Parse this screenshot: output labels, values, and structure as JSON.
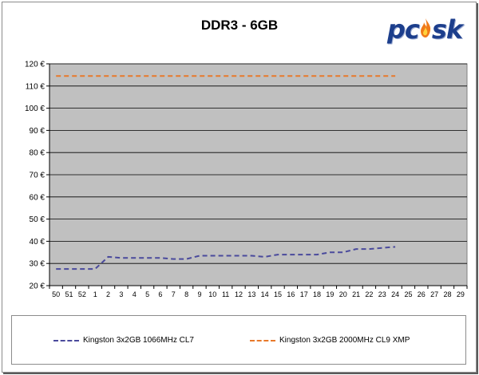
{
  "brand": {
    "logo_text": "pcask",
    "logo_color": "#1c3e8c",
    "flame_color": "#f07a18"
  },
  "chart_data": {
    "type": "line",
    "title": "DDR3 - 6GB",
    "xlabel": "",
    "ylabel": "",
    "categories": [
      "50",
      "51",
      "52",
      "1",
      "2",
      "3",
      "4",
      "5",
      "6",
      "7",
      "8",
      "9",
      "10",
      "11",
      "12",
      "13",
      "14",
      "15",
      "16",
      "17",
      "18",
      "19",
      "20",
      "21",
      "22",
      "23",
      "24",
      "25",
      "26",
      "27",
      "28",
      "29"
    ],
    "ylim": [
      20,
      120
    ],
    "yticks": [
      20,
      30,
      40,
      50,
      60,
      70,
      80,
      90,
      100,
      110,
      120
    ],
    "y_unit_suffix": " €",
    "grid": "horizontal",
    "plot_background": "#c0c0c0",
    "legend_position": "bottom",
    "series": [
      {
        "name": "Kingston 3x2GB 1066MHz CL7",
        "color": "#4a4a9c",
        "style": "dashed",
        "values": [
          27.5,
          27.5,
          27.5,
          27.5,
          33,
          32.5,
          32.5,
          32.5,
          32.5,
          32,
          32,
          33.5,
          33.5,
          33.5,
          33.5,
          33.5,
          33,
          34,
          34,
          34,
          34,
          35,
          35,
          36.5,
          36.5,
          37,
          37.5,
          null,
          null,
          null,
          null,
          null
        ]
      },
      {
        "name": "Kingston 3x2GB 2000MHz CL9 XMP",
        "color": "#e8792a",
        "style": "dashed",
        "values": [
          114.5,
          114.5,
          114.5,
          114.5,
          114.5,
          114.5,
          114.5,
          114.5,
          114.5,
          114.5,
          114.5,
          114.5,
          114.5,
          114.5,
          114.5,
          114.5,
          114.5,
          114.5,
          114.5,
          114.5,
          114.5,
          114.5,
          114.5,
          114.5,
          114.5,
          114.5,
          114.5,
          null,
          null,
          null,
          null,
          null
        ]
      }
    ]
  }
}
